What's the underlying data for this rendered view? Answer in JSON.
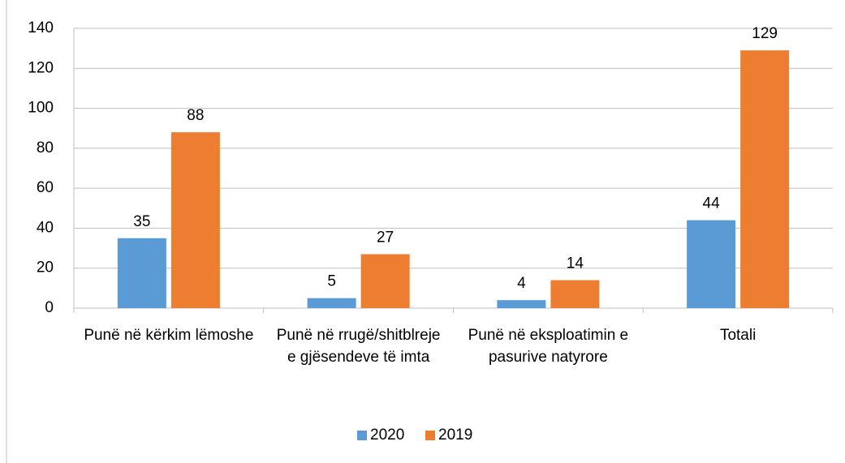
{
  "chart_data": {
    "type": "bar",
    "categories": [
      "Punë në kërkim lëmoshe",
      "Punë në rrugë/shitblreje e gjësendeve të imta",
      "Punë në eksploatimin e pasurive natyrore",
      "Totali"
    ],
    "series": [
      {
        "name": "2020",
        "color": "#5b9bd5",
        "values": [
          35,
          5,
          4,
          44
        ]
      },
      {
        "name": "2019",
        "color": "#ed7d31",
        "values": [
          88,
          27,
          14,
          129
        ]
      }
    ],
    "ylim": [
      0,
      140
    ],
    "yticks": [
      0,
      20,
      40,
      60,
      80,
      100,
      120,
      140
    ],
    "grid": true,
    "legend": "bottom"
  }
}
